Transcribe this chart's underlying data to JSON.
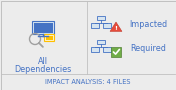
{
  "bg_color": "#ececec",
  "border_color": "#c0c0c0",
  "title_text": "IMPACT ANALYSIS: 4 FILES",
  "title_color": "#4472c4",
  "title_fontsize": 4.8,
  "label_all": "All",
  "label_deps": "Dependencies",
  "label_impacted": "Impacted",
  "label_required": "Required",
  "label_color": "#4472c4",
  "label_fontsize": 5.8,
  "icon_blue": "#4472c4",
  "icon_yellow": "#ffc000",
  "icon_red": "#c00000",
  "icon_green": "#70ad47",
  "icon_gray": "#a0a0a0",
  "icon_light_blue": "#9dc3e6",
  "divider_color": "#b0b0b0"
}
